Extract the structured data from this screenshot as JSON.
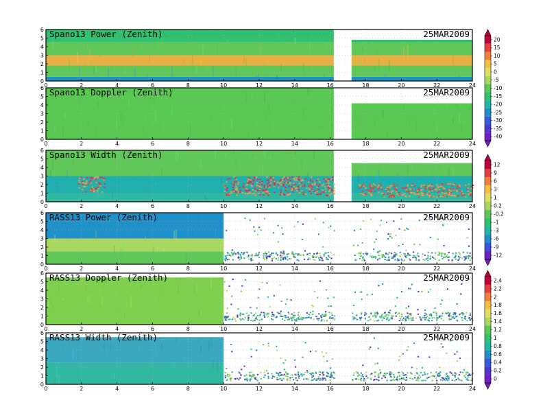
{
  "chart_data": {
    "type": "heatmap",
    "date": "25MAR2009",
    "xlim": [
      0,
      24
    ],
    "x_ticks": [
      "0",
      "2",
      "4",
      "6",
      "8",
      "10",
      "12",
      "14",
      "16",
      "18",
      "20",
      "22",
      "24"
    ],
    "ylim": [
      0,
      6
    ],
    "y_ticks": [
      "0",
      "1",
      "2",
      "3",
      "4",
      "5",
      "6"
    ],
    "grid": true,
    "panels": [
      {
        "title": "Spano13 Power (Zenith)",
        "colorbar_ticks": [
          "20",
          "15",
          "10",
          "5",
          "0",
          "-5",
          "-10",
          "-15",
          "-20",
          "-25",
          "-30",
          "-35",
          "-40"
        ],
        "colorbar_colors": [
          "#c0003a",
          "#e8403c",
          "#f0803c",
          "#f4c040",
          "#e0e060",
          "#a8d860",
          "#60c858",
          "#30c070",
          "#20b8a0",
          "#2090c8",
          "#3060d8",
          "#5038d0",
          "#7020c0"
        ],
        "data_coverage_hours": [
          [
            0,
            16.2
          ],
          [
            17.2,
            24
          ]
        ],
        "max_height_km": [
          6,
          4.8
        ],
        "bands": [
          {
            "from": 0,
            "to": 0.5,
            "color": "#2090c8"
          },
          {
            "from": 0.5,
            "to": 1.8,
            "color": "#60c858"
          },
          {
            "from": 1.8,
            "to": 3.0,
            "color": "#e8b040"
          },
          {
            "from": 3.0,
            "to": 4.5,
            "color": "#60c858"
          },
          {
            "from": 4.5,
            "to": 6.0,
            "color": "#30c070"
          }
        ]
      },
      {
        "title": "Spano13 Doppler (Zenith)",
        "colorbar_ticks": [],
        "colorbar_colors": [],
        "data_coverage_hours": [
          [
            0,
            16.2
          ],
          [
            17.2,
            24
          ]
        ],
        "max_height_km": [
          6,
          4.2
        ],
        "bands": [
          {
            "from": 0,
            "to": 6.0,
            "color": "#58c850"
          }
        ]
      },
      {
        "title": "Spano13 Width (Zenith)",
        "colorbar_ticks": [
          "12",
          "9",
          "6",
          "3",
          "1",
          "0.2",
          "-0.2",
          "-1",
          "-3",
          "-6",
          "-9",
          "-12"
        ],
        "colorbar_colors": [
          "#c0003a",
          "#e04040",
          "#f0803c",
          "#f4c040",
          "#e0e060",
          "#a8d860",
          "#60c858",
          "#30c070",
          "#20b8a0",
          "#2090c8",
          "#4050d8",
          "#7020c0"
        ],
        "data_coverage_hours": [
          [
            0,
            16.2
          ],
          [
            17.2,
            24
          ]
        ],
        "max_height_km": [
          6,
          4.5
        ],
        "bands": [
          {
            "from": 0,
            "to": 1.0,
            "color": "#30b8a0"
          },
          {
            "from": 1.0,
            "to": 3.0,
            "color": "#20b0b0"
          },
          {
            "from": 3.0,
            "to": 6.0,
            "color": "#60c858"
          }
        ],
        "hotspots": [
          {
            "x0": 1.8,
            "x1": 3.3,
            "y0": 1.2,
            "y1": 3.0,
            "color": "#e03050"
          },
          {
            "x0": 10.0,
            "x1": 16.2,
            "y0": 0.8,
            "y1": 3.0,
            "color": "#d83050"
          },
          {
            "x0": 17.5,
            "x1": 24.0,
            "y0": 0.6,
            "y1": 2.2,
            "color": "#e04040"
          }
        ]
      },
      {
        "title": "RASS13 Power (Zenith)",
        "colorbar_ticks": [],
        "colorbar_colors": [],
        "data_coverage_hours": [
          [
            0,
            10.0
          ]
        ],
        "sparse_coverage_hours": [
          [
            10.0,
            16.2
          ],
          [
            17.2,
            24
          ]
        ],
        "max_height_km": [
          6,
          2.0
        ],
        "bands": [
          {
            "from": 0,
            "to": 1.5,
            "color": "#60c858"
          },
          {
            "from": 1.5,
            "to": 3.0,
            "color": "#a8d860"
          },
          {
            "from": 3.0,
            "to": 6.0,
            "color": "#2090c8"
          }
        ]
      },
      {
        "title": "RASS13 Doppler (Zenith)",
        "colorbar_ticks": [
          "2.4",
          "2.2",
          "2",
          "1.8",
          "1.6",
          "1.4",
          "1.2",
          "1",
          "0.8",
          "0.6",
          "0.4",
          "0.2",
          "0"
        ],
        "colorbar_colors": [
          "#c0003a",
          "#e04040",
          "#f0803c",
          "#f4c040",
          "#e0e060",
          "#a8d860",
          "#60c858",
          "#30c070",
          "#20b8a0",
          "#2090c8",
          "#3060d8",
          "#5038d0",
          "#7020c0"
        ],
        "data_coverage_hours": [
          [
            0,
            10.0
          ]
        ],
        "sparse_coverage_hours": [
          [
            10.0,
            16.2
          ],
          [
            17.2,
            24
          ]
        ],
        "max_height_km": [
          5.5,
          1.5
        ],
        "bands": [
          {
            "from": 0,
            "to": 6.0,
            "color": "#80d050"
          }
        ]
      },
      {
        "title": "RASS13 Width (Zenith)",
        "colorbar_ticks": [],
        "colorbar_colors": [],
        "data_coverage_hours": [
          [
            0,
            10.0
          ]
        ],
        "sparse_coverage_hours": [
          [
            10.0,
            16.2
          ],
          [
            17.2,
            24
          ]
        ],
        "max_height_km": [
          5.5,
          1.5
        ],
        "bands": [
          {
            "from": 0,
            "to": 2.5,
            "color": "#30b8a0"
          },
          {
            "from": 2.5,
            "to": 6.0,
            "color": "#3aa8c0"
          }
        ]
      }
    ]
  }
}
